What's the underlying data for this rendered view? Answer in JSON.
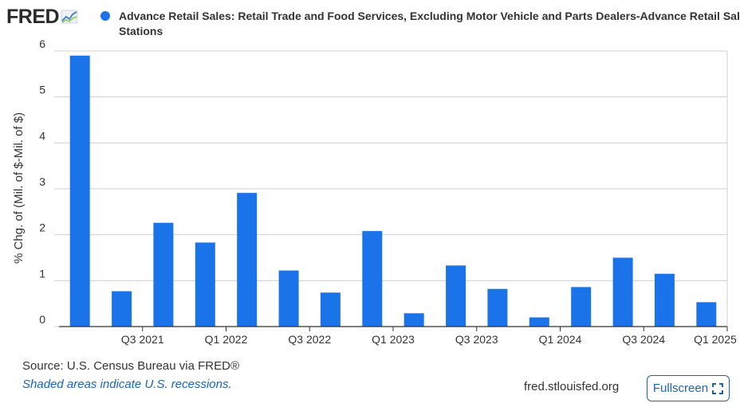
{
  "logo": {
    "text": "FRED"
  },
  "legend": {
    "swatch_color": "#1a73e8",
    "text": "Advance Retail Sales: Retail Trade and Food Services, Excluding Motor Vehicle and Parts Dealers-Advance Retail Sales: Gasoli\nStations"
  },
  "chart_data": {
    "type": "bar",
    "ylabel": "% Chg. of (Mil. of $-Mil. of $)",
    "xlabel": "",
    "ylim": [
      0,
      6
    ],
    "yticks": [
      0,
      1,
      2,
      3,
      4,
      5,
      6
    ],
    "grid": true,
    "bar_color": "#1a73e8",
    "x_tick_labels": [
      "Q3 2021",
      "Q1 2022",
      "Q3 2022",
      "Q1 2023",
      "Q3 2023",
      "Q1 2024",
      "Q3 2024",
      "Q1 2025"
    ],
    "series": [
      {
        "values": [
          5.9,
          0.77,
          2.26,
          1.83,
          2.91,
          1.22,
          0.74,
          2.08,
          0.29,
          1.33,
          0.82,
          0.2,
          0.86,
          1.5,
          1.15,
          0.53
        ]
      }
    ]
  },
  "footer": {
    "source": "Source: U.S. Census Bureau via FRED®",
    "note": "Shaded areas indicate U.S. recessions.",
    "site": "fred.stlouisfed.org",
    "fullscreen_label": "Fullscreen"
  }
}
